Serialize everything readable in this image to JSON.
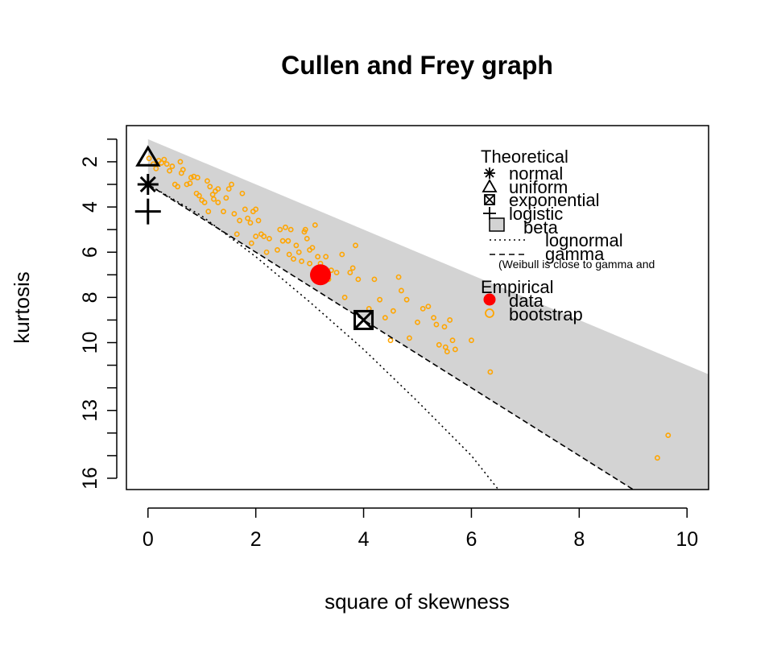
{
  "chart_data": {
    "type": "scatter",
    "title": "Cullen and Frey graph",
    "xlabel": "square of skewness",
    "ylabel": "kurtosis",
    "xlim": [
      -0.4,
      10.4
    ],
    "ylim": [
      16.5,
      0.4
    ],
    "y_reversed": true,
    "x_ticks": [
      0,
      2,
      4,
      6,
      8,
      10
    ],
    "x_tick_labels": [
      "0",
      "2",
      "4",
      "6",
      "8",
      "10"
    ],
    "y_ticks": [
      1,
      2,
      3,
      4,
      5,
      6,
      7,
      8,
      9,
      10,
      11,
      12,
      13,
      14,
      15,
      16
    ],
    "y_tick_labels": [
      {
        "value": 2,
        "label": "2"
      },
      {
        "value": 4,
        "label": "4"
      },
      {
        "value": 6,
        "label": "6"
      },
      {
        "value": 8,
        "label": "8"
      },
      {
        "value": 10,
        "label": "10"
      },
      {
        "value": 13,
        "label": "13"
      },
      {
        "value": 16,
        "label": "16"
      }
    ],
    "beta_region_color": "#d3d3d3",
    "bootstrap_color": "#ffa500",
    "data_color": "#ff0000",
    "theoretical_points": {
      "normal": {
        "x": 0,
        "y": 3
      },
      "uniform": {
        "x": 0,
        "y": 1.8
      },
      "exponential": {
        "x": 4,
        "y": 9
      },
      "logistic": {
        "x": 0,
        "y": 4.2
      }
    },
    "gamma_line": {
      "x0": 0,
      "y0": 3,
      "slope": 1.5
    },
    "lognormal_line": [
      [
        0,
        3
      ],
      [
        1,
        4.4
      ],
      [
        2,
        6.2
      ],
      [
        3,
        8.2
      ],
      [
        4,
        10.3
      ],
      [
        5,
        12.6
      ],
      [
        6,
        15.0
      ],
      [
        6.5,
        16.5
      ]
    ],
    "beta_region": {
      "upper_slope": 1,
      "upper_intercept": 1,
      "lower_slope": 1.5,
      "lower_intercept": 3
    },
    "data_point": {
      "x": 3.2,
      "y": 7
    },
    "bootstrap": [
      {
        "x": 0.02,
        "y": 1.85
      },
      {
        "x": 0.1,
        "y": 2.1
      },
      {
        "x": 0.15,
        "y": 2.3
      },
      {
        "x": 0.2,
        "y": 1.95
      },
      {
        "x": 0.25,
        "y": 2.05
      },
      {
        "x": 0.3,
        "y": 1.9
      },
      {
        "x": 0.35,
        "y": 2.1
      },
      {
        "x": 0.4,
        "y": 2.4
      },
      {
        "x": 0.45,
        "y": 2.2
      },
      {
        "x": 0.5,
        "y": 3.0
      },
      {
        "x": 0.55,
        "y": 3.1
      },
      {
        "x": 0.6,
        "y": 2.0
      },
      {
        "x": 0.62,
        "y": 2.5
      },
      {
        "x": 0.65,
        "y": 2.35
      },
      {
        "x": 0.72,
        "y": 3.0
      },
      {
        "x": 0.78,
        "y": 2.95
      },
      {
        "x": 0.8,
        "y": 2.7
      },
      {
        "x": 0.85,
        "y": 2.65
      },
      {
        "x": 0.9,
        "y": 3.4
      },
      {
        "x": 0.92,
        "y": 2.7
      },
      {
        "x": 0.95,
        "y": 3.5
      },
      {
        "x": 1.0,
        "y": 3.7
      },
      {
        "x": 1.05,
        "y": 3.8
      },
      {
        "x": 1.1,
        "y": 2.85
      },
      {
        "x": 1.12,
        "y": 4.2
      },
      {
        "x": 1.15,
        "y": 3.1
      },
      {
        "x": 1.2,
        "y": 3.45
      },
      {
        "x": 1.22,
        "y": 3.65
      },
      {
        "x": 1.25,
        "y": 3.3
      },
      {
        "x": 1.3,
        "y": 3.8
      },
      {
        "x": 1.3,
        "y": 3.2
      },
      {
        "x": 1.4,
        "y": 4.2
      },
      {
        "x": 1.45,
        "y": 3.6
      },
      {
        "x": 1.5,
        "y": 3.2
      },
      {
        "x": 1.55,
        "y": 3.0
      },
      {
        "x": 1.6,
        "y": 4.3
      },
      {
        "x": 1.65,
        "y": 5.2
      },
      {
        "x": 1.7,
        "y": 4.6
      },
      {
        "x": 1.75,
        "y": 3.4
      },
      {
        "x": 1.8,
        "y": 4.1
      },
      {
        "x": 1.85,
        "y": 4.5
      },
      {
        "x": 1.9,
        "y": 4.7
      },
      {
        "x": 1.92,
        "y": 5.6
      },
      {
        "x": 1.95,
        "y": 4.2
      },
      {
        "x": 2.0,
        "y": 4.1
      },
      {
        "x": 2.0,
        "y": 5.3
      },
      {
        "x": 2.05,
        "y": 4.6
      },
      {
        "x": 2.1,
        "y": 5.2
      },
      {
        "x": 2.15,
        "y": 5.3
      },
      {
        "x": 2.2,
        "y": 6.0
      },
      {
        "x": 2.25,
        "y": 5.4
      },
      {
        "x": 2.4,
        "y": 5.9
      },
      {
        "x": 2.45,
        "y": 5.0
      },
      {
        "x": 2.5,
        "y": 5.5
      },
      {
        "x": 2.55,
        "y": 4.9
      },
      {
        "x": 2.6,
        "y": 5.5
      },
      {
        "x": 2.62,
        "y": 6.1
      },
      {
        "x": 2.65,
        "y": 5.0
      },
      {
        "x": 2.7,
        "y": 6.3
      },
      {
        "x": 2.75,
        "y": 5.7
      },
      {
        "x": 2.8,
        "y": 6.0
      },
      {
        "x": 2.85,
        "y": 6.4
      },
      {
        "x": 2.9,
        "y": 5.1
      },
      {
        "x": 2.92,
        "y": 5.0
      },
      {
        "x": 2.95,
        "y": 5.4
      },
      {
        "x": 3.0,
        "y": 5.9
      },
      {
        "x": 3.0,
        "y": 6.5
      },
      {
        "x": 3.05,
        "y": 5.8
      },
      {
        "x": 3.1,
        "y": 4.8
      },
      {
        "x": 3.15,
        "y": 6.2
      },
      {
        "x": 3.2,
        "y": 6.5
      },
      {
        "x": 3.3,
        "y": 6.2
      },
      {
        "x": 3.35,
        "y": 7.2
      },
      {
        "x": 3.4,
        "y": 6.8
      },
      {
        "x": 3.5,
        "y": 6.9
      },
      {
        "x": 3.6,
        "y": 6.1
      },
      {
        "x": 3.65,
        "y": 8.0
      },
      {
        "x": 3.75,
        "y": 6.9
      },
      {
        "x": 3.8,
        "y": 6.7
      },
      {
        "x": 3.85,
        "y": 5.7
      },
      {
        "x": 3.9,
        "y": 7.2
      },
      {
        "x": 4.1,
        "y": 8.5
      },
      {
        "x": 4.2,
        "y": 7.2
      },
      {
        "x": 4.3,
        "y": 8.1
      },
      {
        "x": 4.4,
        "y": 8.9
      },
      {
        "x": 4.5,
        "y": 9.9
      },
      {
        "x": 4.55,
        "y": 8.6
      },
      {
        "x": 4.65,
        "y": 7.1
      },
      {
        "x": 4.7,
        "y": 7.7
      },
      {
        "x": 4.8,
        "y": 8.1
      },
      {
        "x": 4.85,
        "y": 9.8
      },
      {
        "x": 5.0,
        "y": 9.1
      },
      {
        "x": 5.1,
        "y": 8.5
      },
      {
        "x": 5.2,
        "y": 8.4
      },
      {
        "x": 5.3,
        "y": 8.9
      },
      {
        "x": 5.35,
        "y": 9.2
      },
      {
        "x": 5.4,
        "y": 10.1
      },
      {
        "x": 5.5,
        "y": 9.3
      },
      {
        "x": 5.52,
        "y": 10.2
      },
      {
        "x": 5.55,
        "y": 10.4
      },
      {
        "x": 5.6,
        "y": 9.0
      },
      {
        "x": 5.65,
        "y": 9.9
      },
      {
        "x": 5.7,
        "y": 10.3
      },
      {
        "x": 6.0,
        "y": 9.9
      },
      {
        "x": 6.35,
        "y": 11.3
      },
      {
        "x": 9.45,
        "y": 15.1
      },
      {
        "x": 9.65,
        "y": 14.1
      }
    ],
    "legend": {
      "theoretical_title": "Theoretical",
      "items": [
        {
          "label": "normal",
          "symbol": "asterisk-icon"
        },
        {
          "label": "uniform",
          "symbol": "triangle-icon"
        },
        {
          "label": "exponential",
          "symbol": "boxed-x-icon"
        },
        {
          "label": "logistic",
          "symbol": "plus-icon"
        },
        {
          "label": "beta",
          "symbol": "grey-square-icon"
        },
        {
          "label": "lognormal",
          "symbol": "dotted-line-icon"
        },
        {
          "label": "gamma",
          "symbol": "dashed-line-icon"
        }
      ],
      "note": "(Weibull is close to gamma and",
      "empirical_title": "Empirical",
      "empirical_items": [
        {
          "label": "data",
          "symbol": "filled-circle-icon"
        },
        {
          "label": "bootstrap",
          "symbol": "open-circle-icon"
        }
      ]
    }
  }
}
